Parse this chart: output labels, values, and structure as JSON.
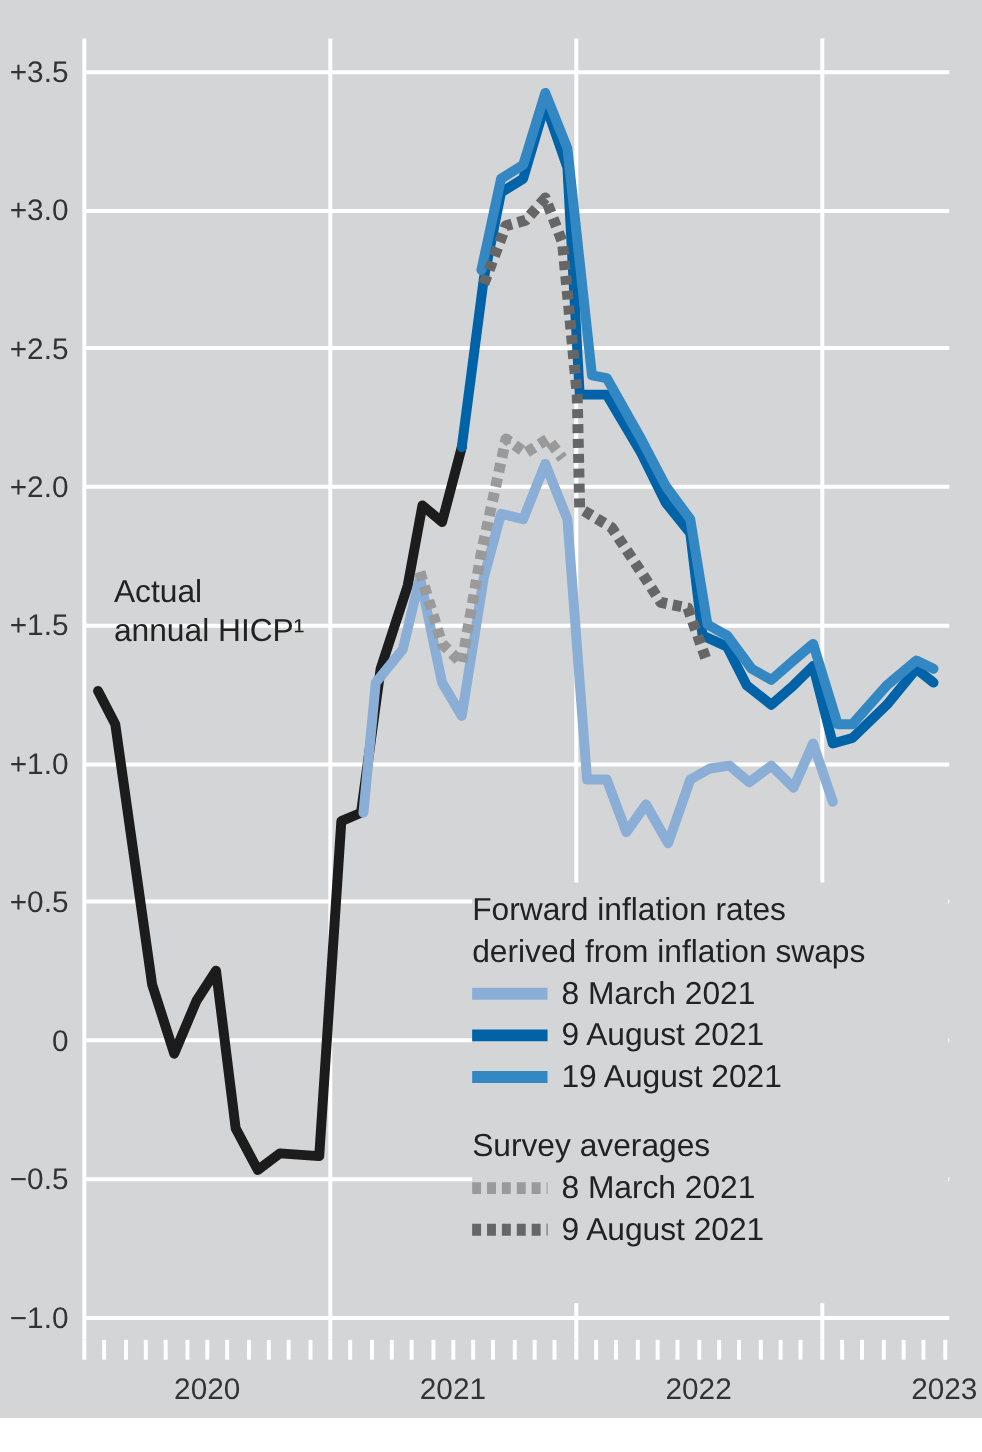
{
  "chart_data": {
    "type": "line",
    "legend_title": "Forward inflation rates derived from inflation swaps",
    "annotations": [
      "Survey averages"
    ],
    "xlim": [
      2020,
      2023.52
    ],
    "ylim": [
      -1.08,
      3.62
    ],
    "xticks": [
      {
        "value": 2020,
        "label": null
      },
      {
        "value": 2020.083,
        "label": null
      },
      {
        "value": 2020.167,
        "label": null
      },
      {
        "value": 2020.25,
        "label": null
      },
      {
        "value": 2020.333,
        "label": null
      },
      {
        "value": 2020.417,
        "label": null
      },
      {
        "value": 2020.5,
        "label": "2020"
      },
      {
        "value": 2020.583,
        "label": null
      },
      {
        "value": 2020.667,
        "label": null
      },
      {
        "value": 2020.75,
        "label": null
      },
      {
        "value": 2020.833,
        "label": null
      },
      {
        "value": 2020.917,
        "label": null
      },
      {
        "value": 2021,
        "label": null
      },
      {
        "value": 2021.083,
        "label": null
      },
      {
        "value": 2021.167,
        "label": null
      },
      {
        "value": 2021.25,
        "label": null
      },
      {
        "value": 2021.333,
        "label": null
      },
      {
        "value": 2021.417,
        "label": null
      },
      {
        "value": 2021.5,
        "label": "2021"
      },
      {
        "value": 2021.583,
        "label": null
      },
      {
        "value": 2021.667,
        "label": null
      },
      {
        "value": 2021.75,
        "label": null
      },
      {
        "value": 2021.833,
        "label": null
      },
      {
        "value": 2021.917,
        "label": null
      },
      {
        "value": 2022,
        "label": null
      },
      {
        "value": 2022.083,
        "label": null
      },
      {
        "value": 2022.167,
        "label": null
      },
      {
        "value": 2022.25,
        "label": null
      },
      {
        "value": 2022.333,
        "label": null
      },
      {
        "value": 2022.417,
        "label": null
      },
      {
        "value": 2022.5,
        "label": "2022"
      },
      {
        "value": 2022.583,
        "label": null
      },
      {
        "value": 2022.667,
        "label": null
      },
      {
        "value": 2022.75,
        "label": null
      },
      {
        "value": 2022.833,
        "label": null
      },
      {
        "value": 2022.917,
        "label": null
      },
      {
        "value": 2023,
        "label": null
      },
      {
        "value": 2023.083,
        "label": null
      },
      {
        "value": 2023.167,
        "label": null
      },
      {
        "value": 2023.25,
        "label": null
      },
      {
        "value": 2023.333,
        "label": null
      },
      {
        "value": 2023.417,
        "label": null
      },
      {
        "value": 2023.5,
        "label": "2023"
      }
    ],
    "yticks": [
      {
        "value": -1.0,
        "label": "−1.0"
      },
      {
        "value": -0.5,
        "label": "−0.5"
      },
      {
        "value": 0,
        "label": "0"
      },
      {
        "value": 0.5,
        "label": "+0.5"
      },
      {
        "value": 1.0,
        "label": "+1.0"
      },
      {
        "value": 1.5,
        "label": "+1.5"
      },
      {
        "value": 2.0,
        "label": "+2.0"
      },
      {
        "value": 2.5,
        "label": "+2.5"
      },
      {
        "value": 3.0,
        "label": "+3.0"
      },
      {
        "value": 3.5,
        "label": "+3.5"
      }
    ],
    "grid": true,
    "legend": "bottom right",
    "series": [
      {
        "name": "Actual annual HICP¹",
        "color": "#1c1c1c",
        "line_style": "solid",
        "x": [
          2020.06,
          2020.13,
          2020.28,
          2020.37,
          2020.46,
          2020.54,
          2020.62,
          2020.71,
          2020.8,
          2020.96,
          2021.05,
          2021.13,
          2021.21,
          2021.32,
          2021.38,
          2021.46,
          2021.54
        ],
        "values": [
          1.26,
          1.14,
          0.2,
          -0.05,
          0.14,
          0.25,
          -0.32,
          -0.47,
          -0.41,
          -0.42,
          0.79,
          0.82,
          1.34,
          1.64,
          1.93,
          1.87,
          2.14
        ]
      },
      {
        "name": "8 March 2021",
        "color": "#8aaed6",
        "line_style": "solid",
        "x": [
          2021.14,
          2021.19,
          2021.3,
          2021.37,
          2021.46,
          2021.54,
          2021.63,
          2021.7,
          2021.79,
          2021.88,
          2021.97,
          2022.05,
          2022.13,
          2022.21,
          2022.29,
          2022.38,
          2022.47,
          2022.55,
          2022.63,
          2022.71,
          2022.8,
          2022.89,
          2022.97,
          2023.05
        ],
        "values": [
          0.82,
          1.29,
          1.41,
          1.67,
          1.29,
          1.17,
          1.67,
          1.9,
          1.88,
          2.08,
          1.88,
          0.94,
          0.94,
          0.75,
          0.85,
          0.71,
          0.94,
          0.98,
          0.99,
          0.93,
          0.99,
          0.91,
          1.07,
          0.86
        ]
      },
      {
        "name": "9 August 2021",
        "color": "#0063a8",
        "line_style": "solid",
        "x": [
          2021.54,
          2021.63,
          2021.7,
          2021.79,
          2021.88,
          2021.97,
          2022.02,
          2022.13,
          2022.27,
          2022.37,
          2022.47,
          2022.52,
          2022.62,
          2022.7,
          2022.8,
          2022.89,
          2022.97,
          2023.05,
          2023.13,
          2023.27,
          2023.39,
          2023.46
        ],
        "values": [
          2.14,
          2.75,
          3.06,
          3.11,
          3.38,
          3.15,
          2.33,
          2.33,
          2.12,
          1.94,
          1.83,
          1.46,
          1.42,
          1.28,
          1.21,
          1.28,
          1.35,
          1.07,
          1.09,
          1.21,
          1.34,
          1.29
        ]
      },
      {
        "name": "19 August 2021",
        "color": "#3388c4",
        "line_style": "solid",
        "x": [
          2021.62,
          2021.7,
          2021.79,
          2021.88,
          2021.97,
          2022.07,
          2022.13,
          2022.27,
          2022.37,
          2022.47,
          2022.54,
          2022.62,
          2022.72,
          2022.8,
          2022.89,
          2022.97,
          2023.07,
          2023.13,
          2023.27,
          2023.39,
          2023.46
        ],
        "values": [
          2.78,
          3.11,
          3.16,
          3.42,
          3.22,
          2.4,
          2.39,
          2.17,
          2.0,
          1.88,
          1.5,
          1.46,
          1.34,
          1.3,
          1.37,
          1.43,
          1.14,
          1.14,
          1.28,
          1.37,
          1.34
        ]
      },
      {
        "name": "8 March 2021",
        "color": "#9a9a9a",
        "line_style": "dotted",
        "x": [
          2021.37,
          2021.46,
          2021.54,
          2021.62,
          2021.72,
          2021.8,
          2021.89,
          2021.95
        ],
        "values": [
          1.69,
          1.43,
          1.36,
          1.76,
          2.17,
          2.12,
          2.17,
          2.1
        ]
      },
      {
        "name": "9 August 2021",
        "color": "#666666",
        "line_style": "dotted",
        "x": [
          2021.63,
          2021.72,
          2021.8,
          2021.88,
          2021.95,
          2022.01,
          2022.02,
          2022.15,
          2022.27,
          2022.35,
          2022.46,
          2022.54
        ],
        "values": [
          2.73,
          2.94,
          2.96,
          3.04,
          2.88,
          2.33,
          1.92,
          1.85,
          1.69,
          1.58,
          1.56,
          1.36
        ]
      }
    ]
  }
}
